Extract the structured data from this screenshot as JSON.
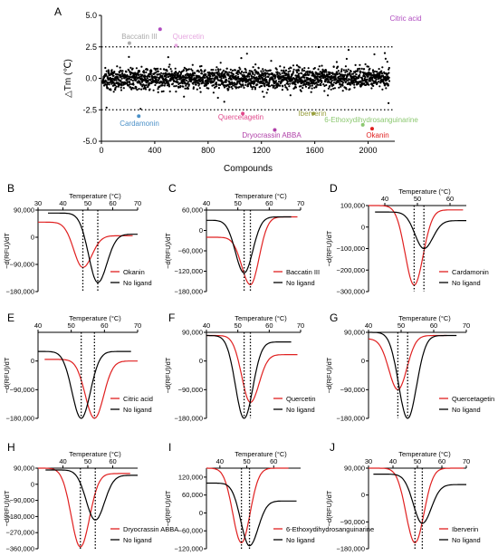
{
  "chart_data": [
    {
      "panel": "A",
      "type": "scatter",
      "xlabel": "Compounds",
      "ylabel": "△Tm (℃)",
      "xlim": [
        0,
        2200
      ],
      "ylim": [
        -5.0,
        5.0
      ],
      "xticks": [
        "0",
        "400",
        "800",
        "1200",
        "1600",
        "2000"
      ],
      "yticks": [
        "5.0",
        "2.5",
        "0.0",
        "-2.5",
        "-5.0"
      ],
      "thresholds": [
        2.5,
        -2.5
      ],
      "bulk_range": [
        -1.0,
        1.0
      ],
      "bulk_count": 2100,
      "highlights": [
        {
          "label": "Citric acid",
          "x": 440,
          "y": 3.9,
          "color": "#b04cc0"
        },
        {
          "label": "Baccatin III",
          "x": 210,
          "y": 2.8,
          "color": "#aaaaaa"
        },
        {
          "label": "Quercetin",
          "x": 560,
          "y": 2.6,
          "color": "#e6a8e0"
        },
        {
          "label": "Cardamonin",
          "x": 280,
          "y": -3.0,
          "color": "#4a90c8"
        },
        {
          "label": "Quercetagetin",
          "x": 1060,
          "y": -2.8,
          "color": "#e04a8c"
        },
        {
          "label": "Iberverin",
          "x": 1590,
          "y": -2.8,
          "color": "#9aa040"
        },
        {
          "label": "6-Ethoxydihydrosanguinarine",
          "x": 1960,
          "y": -3.7,
          "color": "#8cc870"
        },
        {
          "label": "Dryocrassin ABBA",
          "x": 1300,
          "y": -4.1,
          "color": "#b040a8"
        },
        {
          "label": "Okanin",
          "x": 2030,
          "y": -4.0,
          "color": "#e02020"
        }
      ]
    },
    {
      "panel": "B",
      "type": "line",
      "xlabel": "Temperature (°C)",
      "ylabel": "−d(RFU)/dT",
      "xlim": [
        30,
        70
      ],
      "ylim": [
        -180000,
        90000
      ],
      "xticks": [
        "30",
        "40",
        "50",
        "60",
        "70"
      ],
      "yticks": [
        "90,000",
        "0",
        "−90,000",
        "−180,000"
      ],
      "series": [
        {
          "name": "Okanin",
          "color": "#e02020",
          "ymin_x": 48,
          "ymin": -100000,
          "start": 50000,
          "end": 5000
        },
        {
          "name": "No ligand",
          "color": "#000000",
          "ymin_x": 54,
          "ymin": -150000,
          "start": 80000,
          "end": 10000
        }
      ],
      "vlines": [
        48,
        54
      ]
    },
    {
      "panel": "C",
      "type": "line",
      "xlabel": "Temperature (°C)",
      "ylabel": "−d(RFU)/dT",
      "xlim": [
        40,
        70
      ],
      "ylim": [
        -180000,
        60000
      ],
      "xticks": [
        "40",
        "50",
        "60",
        "70"
      ],
      "yticks": [
        "60,000",
        "0",
        "−60,000",
        "−120,000",
        "−180,000"
      ],
      "series": [
        {
          "name": "Baccatin III",
          "color": "#e02020",
          "ymin_x": 54,
          "ymin": -160000,
          "start": -20000,
          "end": 40000
        },
        {
          "name": "No ligand",
          "color": "#000000",
          "ymin_x": 52,
          "ymin": -125000,
          "start": 30000,
          "end": 40000
        }
      ],
      "vlines": [
        52,
        54
      ]
    },
    {
      "panel": "D",
      "type": "line",
      "xlabel": "Temperature (°C)",
      "ylabel": "−d(RFU)/dT",
      "xlim": [
        35,
        65
      ],
      "ylim": [
        -300000,
        100000
      ],
      "xticks": [
        "40",
        "50",
        "60"
      ],
      "yticks": [
        "100,000",
        "0",
        "−100,000",
        "−200,000",
        "−300,000"
      ],
      "series": [
        {
          "name": "Cardamonin",
          "color": "#e02020",
          "ymin_x": 49,
          "ymin": -270000,
          "start": 100000,
          "end": 80000
        },
        {
          "name": "No ligand",
          "color": "#000000",
          "ymin_x": 52,
          "ymin": -100000,
          "start": 70000,
          "end": 30000
        }
      ],
      "vlines": [
        49,
        52
      ]
    },
    {
      "panel": "E",
      "type": "line",
      "xlabel": "Temperature (°C)",
      "ylabel": "−d(RFU)/dT",
      "xlim": [
        40,
        70
      ],
      "ylim": [
        -180000,
        90000
      ],
      "xticks": [
        "40",
        "50",
        "60",
        "70"
      ],
      "yticks": [
        "0",
        "−90,000",
        "−180,000"
      ],
      "series": [
        {
          "name": "Citric acid",
          "color": "#e02020",
          "ymin_x": 57,
          "ymin": -180000,
          "start": 5000,
          "end": 0
        },
        {
          "name": "No ligand",
          "color": "#000000",
          "ymin_x": 53,
          "ymin": -180000,
          "start": 30000,
          "end": 30000
        }
      ],
      "vlines": [
        53,
        57
      ]
    },
    {
      "panel": "F",
      "type": "line",
      "xlabel": "Temperature (°C)",
      "ylabel": "−d(RFU)/dT",
      "xlim": [
        40,
        70
      ],
      "ylim": [
        -180000,
        90000
      ],
      "xticks": [
        "40",
        "50",
        "60",
        "70"
      ],
      "yticks": [
        "90,000",
        "0",
        "−90,000",
        "−180,000"
      ],
      "series": [
        {
          "name": "Quercetin",
          "color": "#e02020",
          "ymin_x": 54,
          "ymin": -130000,
          "start": 80000,
          "end": 20000
        },
        {
          "name": "No ligand",
          "color": "#000000",
          "ymin_x": 52,
          "ymin": -180000,
          "start": 80000,
          "end": 60000
        }
      ],
      "vlines": [
        52,
        54
      ]
    },
    {
      "panel": "G",
      "type": "line",
      "xlabel": "Temperature (°C)",
      "ylabel": "−d(RFU)/dT",
      "xlim": [
        40,
        70
      ],
      "ylim": [
        -180000,
        90000
      ],
      "xticks": [
        "40",
        "50",
        "60",
        "70"
      ],
      "yticks": [
        "90,000",
        "0",
        "−90,000",
        "−180,000"
      ],
      "series": [
        {
          "name": "Quercetagetin",
          "color": "#e02020",
          "ymin_x": 49,
          "ymin": -90000,
          "start": 70000,
          "end": 80000
        },
        {
          "name": "No ligand",
          "color": "#000000",
          "ymin_x": 52,
          "ymin": -180000,
          "start": 90000,
          "end": 80000
        }
      ],
      "vlines": [
        49,
        52
      ]
    },
    {
      "panel": "H",
      "type": "line",
      "xlabel": "Temperature (°C)",
      "ylabel": "−d(RFU)/dT",
      "xlim": [
        30,
        70
      ],
      "ylim": [
        -360000,
        90000
      ],
      "xticks": [
        "40",
        "50",
        "60"
      ],
      "yticks": [
        "90,000",
        "0",
        "−90,000",
        "−180,000",
        "−270,000",
        "−360,000"
      ],
      "series": [
        {
          "name": "Dryocrassin ABBA",
          "color": "#e02020",
          "ymin_x": 47,
          "ymin": -350000,
          "start": 90000,
          "end": 60000
        },
        {
          "name": "No ligand",
          "color": "#000000",
          "ymin_x": 53,
          "ymin": -200000,
          "start": 80000,
          "end": 50000
        }
      ],
      "vlines": [
        47,
        53
      ]
    },
    {
      "panel": "I",
      "type": "line",
      "xlabel": "Temperature (°C)",
      "ylabel": "−d(RFU)/dT",
      "xlim": [
        35,
        70
      ],
      "ylim": [
        -120000,
        150000
      ],
      "xticks": [
        "40",
        "50",
        "60"
      ],
      "yticks": [
        "120,000",
        "60,000",
        "0",
        "−60,000",
        "−120,000"
      ],
      "series": [
        {
          "name": "6-Ethoxydihydrosanguinarine",
          "color": "#e02020",
          "ymin_x": 48,
          "ymin": -100000,
          "start": 150000,
          "end": 150000
        },
        {
          "name": "No ligand",
          "color": "#000000",
          "ymin_x": 51,
          "ymin": -110000,
          "start": 100000,
          "end": 40000
        }
      ],
      "vlines": [
        48,
        51
      ]
    },
    {
      "panel": "J",
      "type": "line",
      "xlabel": "Temperature (°C)",
      "ylabel": "−d(RFU)/dT",
      "xlim": [
        30,
        70
      ],
      "ylim": [
        -180000,
        90000
      ],
      "xticks": [
        "30",
        "40",
        "50",
        "60",
        "70"
      ],
      "yticks": [
        "90,000",
        "0",
        "−90,000",
        "−180,000"
      ],
      "series": [
        {
          "name": "Iberverin",
          "color": "#e02020",
          "ymin_x": 49,
          "ymin": -160000,
          "start": 90000,
          "end": 90000
        },
        {
          "name": "No ligand",
          "color": "#000000",
          "ymin_x": 52,
          "ymin": -95000,
          "start": 70000,
          "end": 35000
        }
      ],
      "vlines": [
        49,
        52
      ]
    }
  ]
}
